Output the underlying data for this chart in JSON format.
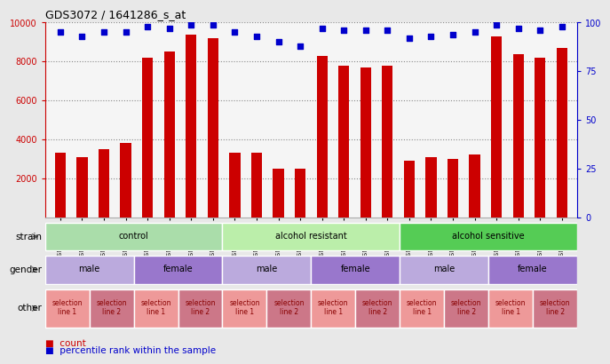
{
  "title": "GDS3072 / 1641286_s_at",
  "samples": [
    "GSM183815",
    "GSM183816",
    "GSM183990",
    "GSM183991",
    "GSM183817",
    "GSM183856",
    "GSM183992",
    "GSM183993",
    "GSM183887",
    "GSM183888",
    "GSM184121",
    "GSM184122",
    "GSM183936",
    "GSM183969",
    "GSM184123",
    "GSM184124",
    "GSM183857",
    "GSM183858",
    "GSM183994",
    "GSM184118",
    "GSM183875",
    "GSM183886",
    "GSM184119",
    "GSM184120"
  ],
  "counts": [
    3300,
    3100,
    3500,
    3800,
    8200,
    8500,
    9400,
    9200,
    3300,
    3300,
    2500,
    2500,
    8300,
    7800,
    7700,
    7800,
    2900,
    3100,
    3000,
    3250,
    9300,
    8400,
    8200,
    8700
  ],
  "percentile_rank": [
    95,
    93,
    95,
    95,
    98,
    97,
    99,
    99,
    95,
    93,
    90,
    88,
    97,
    96,
    96,
    96,
    92,
    93,
    94,
    95,
    99,
    97,
    96,
    98
  ],
  "bar_color": "#cc0000",
  "dot_color": "#0000cc",
  "ylim_left": [
    0,
    10000
  ],
  "yticks_left": [
    2000,
    4000,
    6000,
    8000,
    10000
  ],
  "ylim_right": [
    0,
    100
  ],
  "yticks_right": [
    0,
    25,
    50,
    75,
    100
  ],
  "strain_groups": [
    {
      "label": "control",
      "start": 0,
      "end": 8,
      "color": "#aaddaa"
    },
    {
      "label": "alcohol resistant",
      "start": 8,
      "end": 16,
      "color": "#bbeeaa"
    },
    {
      "label": "alcohol sensitive",
      "start": 16,
      "end": 24,
      "color": "#55cc55"
    }
  ],
  "gender_groups": [
    {
      "label": "male",
      "start": 0,
      "end": 4,
      "color": "#bbaadd"
    },
    {
      "label": "female",
      "start": 4,
      "end": 8,
      "color": "#9977cc"
    },
    {
      "label": "male",
      "start": 8,
      "end": 12,
      "color": "#bbaadd"
    },
    {
      "label": "female",
      "start": 12,
      "end": 16,
      "color": "#9977cc"
    },
    {
      "label": "male",
      "start": 16,
      "end": 20,
      "color": "#bbaadd"
    },
    {
      "label": "female",
      "start": 20,
      "end": 24,
      "color": "#9977cc"
    }
  ],
  "other_groups": [
    {
      "label": "selection\nline 1",
      "start": 0,
      "end": 2,
      "color": "#ee9999"
    },
    {
      "label": "selection\nline 2",
      "start": 2,
      "end": 4,
      "color": "#cc7788"
    },
    {
      "label": "selection\nline 1",
      "start": 4,
      "end": 6,
      "color": "#ee9999"
    },
    {
      "label": "selection\nline 2",
      "start": 6,
      "end": 8,
      "color": "#cc7788"
    },
    {
      "label": "selection\nline 1",
      "start": 8,
      "end": 10,
      "color": "#ee9999"
    },
    {
      "label": "selection\nline 2",
      "start": 10,
      "end": 12,
      "color": "#cc7788"
    },
    {
      "label": "selection\nline 1",
      "start": 12,
      "end": 14,
      "color": "#ee9999"
    },
    {
      "label": "selection\nline 2",
      "start": 14,
      "end": 16,
      "color": "#cc7788"
    },
    {
      "label": "selection\nline 1",
      "start": 16,
      "end": 18,
      "color": "#ee9999"
    },
    {
      "label": "selection\nline 2",
      "start": 18,
      "end": 20,
      "color": "#cc7788"
    },
    {
      "label": "selection\nline 1",
      "start": 20,
      "end": 22,
      "color": "#ee9999"
    },
    {
      "label": "selection\nline 2",
      "start": 22,
      "end": 24,
      "color": "#cc7788"
    }
  ],
  "background_color": "#e8e8e8",
  "chart_bg": "#f5f5f5",
  "legend_count_color": "#cc0000",
  "legend_pct_color": "#0000cc"
}
